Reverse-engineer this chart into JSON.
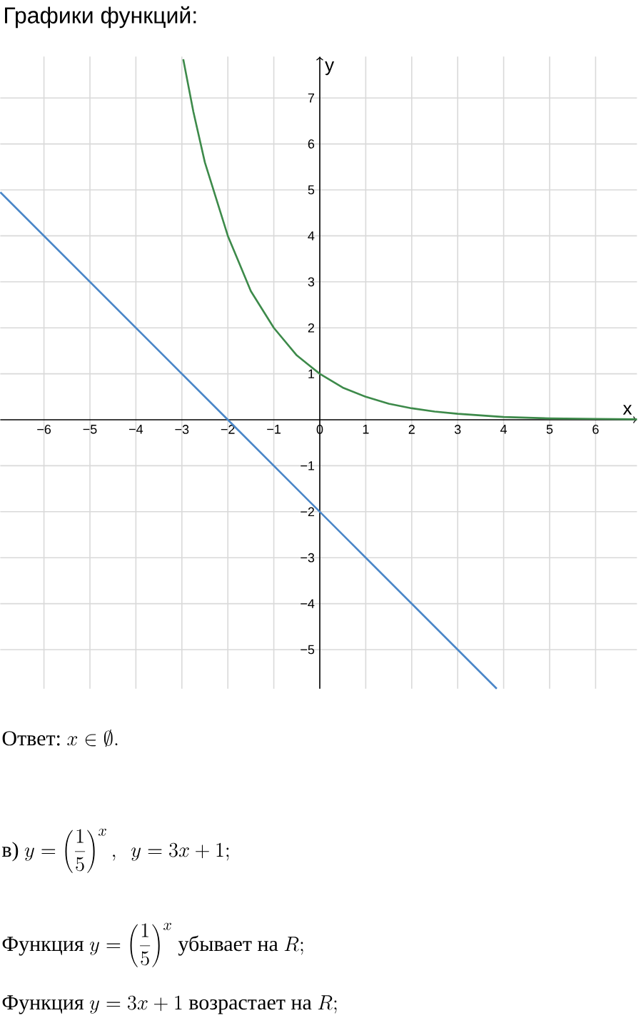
{
  "chart_data": {
    "type": "line",
    "title": "Графики функций:",
    "xlabel": "x",
    "ylabel": "y",
    "xlim": [
      -6.95,
      6.9
    ],
    "ylim": [
      -5.85,
      7.9
    ],
    "xticks": [
      {
        "value": -6,
        "label": "−6"
      },
      {
        "value": -5,
        "label": "−5"
      },
      {
        "value": -4,
        "label": "−4"
      },
      {
        "value": -3,
        "label": "−3"
      },
      {
        "value": -2,
        "label": "−2"
      },
      {
        "value": -1,
        "label": "−1"
      },
      0,
      1,
      2,
      3,
      4,
      5,
      6
    ],
    "yticks": [
      {
        "value": -5,
        "label": "−5"
      },
      {
        "value": -4,
        "label": "−4"
      },
      {
        "value": -3,
        "label": "−3"
      },
      {
        "value": -2,
        "label": "−2"
      },
      {
        "value": -1,
        "label": "−1"
      },
      1,
      2,
      3,
      4,
      5,
      6,
      7
    ],
    "grid": true,
    "marker": "none",
    "line_style": "solid",
    "series": [
      {
        "color": "#4a86c8",
        "x": [
          -6.95,
          -2,
          0,
          3.85
        ],
        "values": [
          4.95,
          0,
          -2,
          -5.85
        ]
      },
      {
        "color": "#3d8a4a",
        "x": [
          -2.97,
          -2.75,
          -2.5,
          -2.25,
          -2,
          -1.75,
          -1.5,
          -1.25,
          -1,
          -0.75,
          -0.5,
          -0.25,
          0,
          0.5,
          1,
          1.5,
          2,
          2.5,
          3,
          4,
          5,
          6,
          6.9
        ],
        "values": [
          7.84,
          6.7,
          5.6,
          4.8,
          4,
          3.4,
          2.8,
          2.4,
          2,
          1.7,
          1.4,
          1.2,
          1,
          0.7,
          0.5,
          0.35,
          0.25,
          0.18,
          0.13,
          0.06,
          0.03,
          0.02,
          0.01
        ]
      }
    ],
    "annotations": [
      "Ответ:",
      "x \\in \\emptyset.",
      "в)",
      "y=\\left(\\frac{1}{5}\\right)^{x},\\ \\ y=3x+1;",
      "Функция",
      "y=\\left(\\frac{1}{5}\\right)^{x}",
      "убывает на",
      "R;",
      "Функция",
      "y=3x+1",
      "возрастает на",
      "R;"
    ]
  }
}
